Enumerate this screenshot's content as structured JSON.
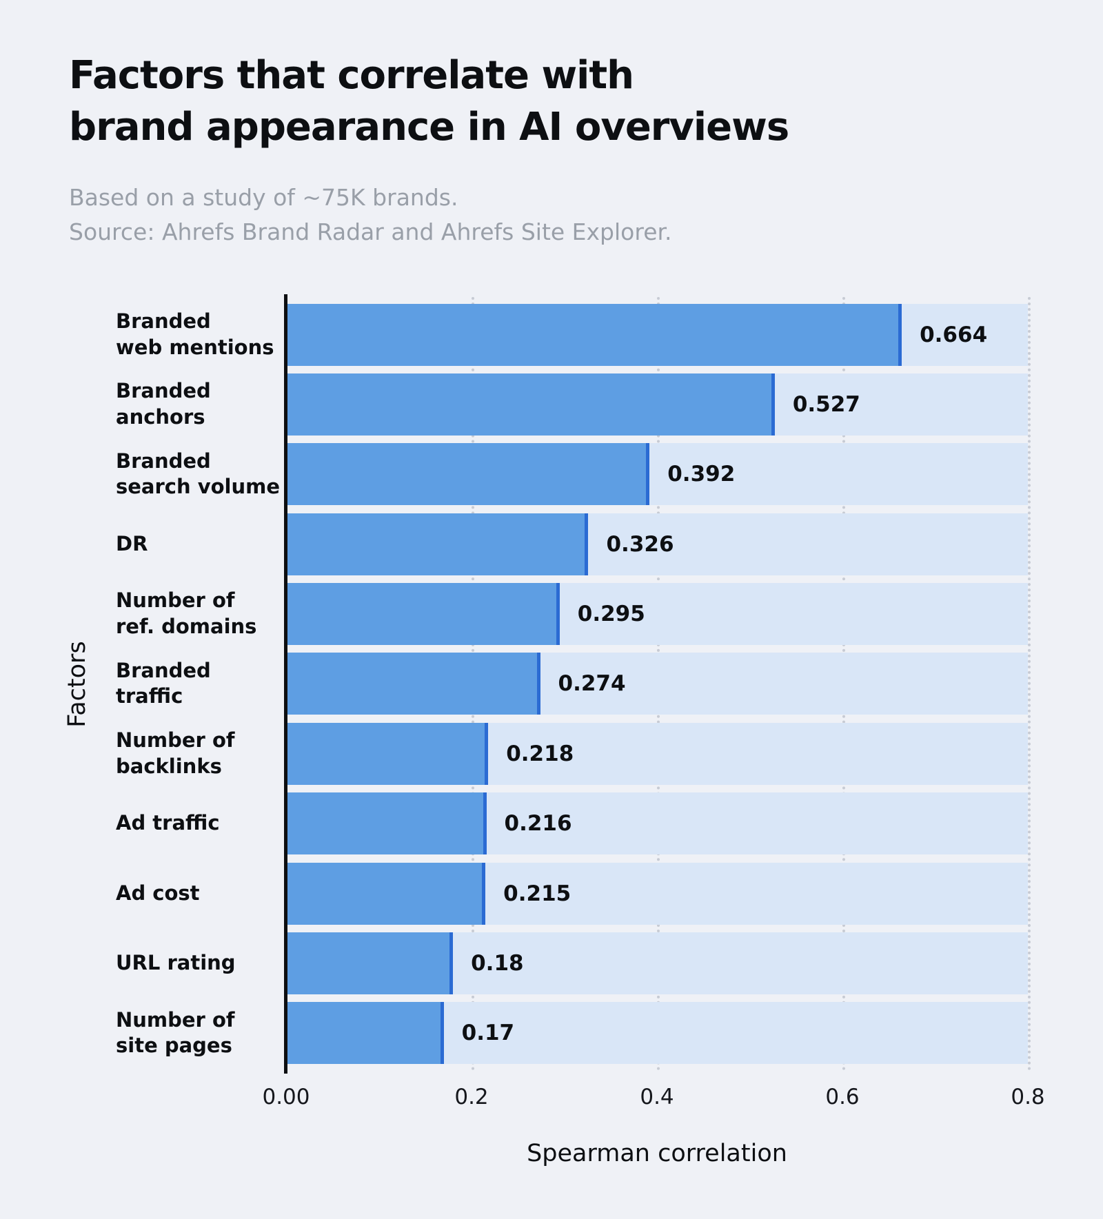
{
  "title": "Factors that correlate with\nbrand appearance in AI overviews",
  "subtitle": "Based on a study of ~75K brands.\nSource: Ahrefs Brand Radar and Ahrefs Site Explorer.",
  "chart_data": {
    "type": "bar",
    "orientation": "horizontal",
    "title": "Factors that correlate with brand appearance in AI overviews",
    "subtitle": "Based on a study of ~75K brands. Source: Ahrefs Brand Radar and Ahrefs Site Explorer.",
    "xlabel": "Spearman correlation",
    "ylabel": "Factors",
    "xlim": [
      0,
      0.8
    ],
    "x_tick_labels": [
      "0.00",
      "0.2",
      "0.4",
      "0.6",
      "0.8"
    ],
    "x_tick_values": [
      0,
      0.2,
      0.4,
      0.6,
      0.8
    ],
    "grid": "vertical-dotted",
    "legend": "none",
    "categories": [
      "Branded\nweb mentions",
      "Branded\nanchors",
      "Branded\nsearch volume",
      "DR",
      "Number of\nref. domains",
      "Branded\ntraffic",
      "Number of\nbacklinks",
      "Ad traffic",
      "Ad cost",
      "URL rating",
      "Number of\nsite pages"
    ],
    "values": [
      0.664,
      0.527,
      0.392,
      0.326,
      0.295,
      0.274,
      0.218,
      0.216,
      0.215,
      0.18,
      0.17
    ],
    "value_labels": [
      "0.664",
      "0.527",
      "0.392",
      "0.326",
      "0.295",
      "0.274",
      "0.218",
      "0.216",
      "0.215",
      "0.18",
      "0.17"
    ],
    "colors": {
      "background": "#EFF1F6",
      "track": "#D9E6F7",
      "bar": "#5E9EE3",
      "bar_edge": "#2B6BD3",
      "gridline": "#C7CBD4",
      "axis": "#0D0F12",
      "text": "#0D0F12",
      "subtitle": "#999FA8"
    }
  }
}
